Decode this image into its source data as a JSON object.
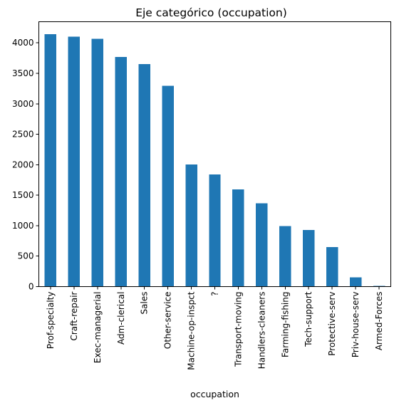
{
  "chart_data": {
    "type": "bar",
    "title": "Eje categórico (occupation)",
    "xlabel": "occupation",
    "ylabel": "",
    "categories": [
      "Prof-specialty",
      "Craft-repair",
      "Exec-managerial",
      "Adm-clerical",
      "Sales",
      "Other-service",
      "Machine-op-inspct",
      "?",
      "Transport-moving",
      "Handlers-cleaners",
      "Farming-fishing",
      "Tech-support",
      "Protective-serv",
      "Priv-house-serv",
      "Armed-Forces"
    ],
    "values": [
      4140,
      4099,
      4066,
      3770,
      3650,
      3295,
      2002,
      1843,
      1597,
      1370,
      994,
      928,
      649,
      149,
      9
    ],
    "ylim": [
      0,
      4347
    ],
    "yticks": [
      0,
      500,
      1000,
      1500,
      2000,
      2500,
      3000,
      3500,
      4000
    ],
    "grid": false,
    "legend": "none",
    "bar_color": "#1f77b4"
  }
}
